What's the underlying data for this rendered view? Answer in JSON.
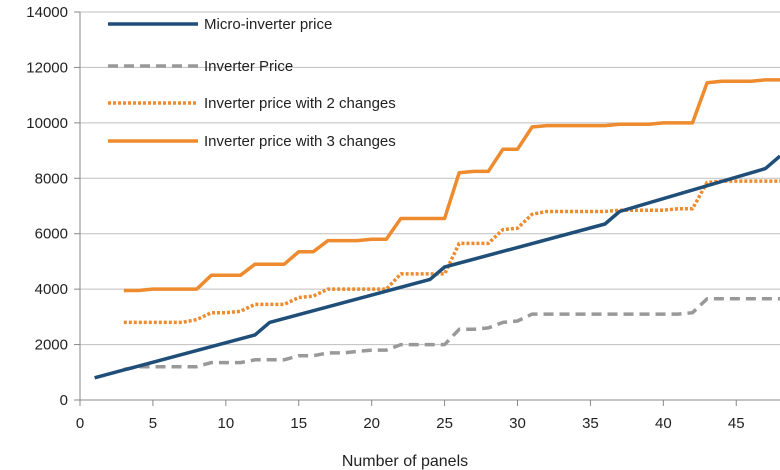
{
  "chart_data": {
    "type": "line",
    "title": "",
    "xlabel": "Number of panels",
    "ylabel": "",
    "xlim": [
      0,
      48
    ],
    "ylim": [
      0,
      14000
    ],
    "xticks": [
      0,
      5,
      10,
      15,
      20,
      25,
      30,
      35,
      40,
      45
    ],
    "yticks": [
      0,
      2000,
      4000,
      6000,
      8000,
      10000,
      12000,
      14000
    ],
    "xtick_labels": [
      "0",
      "5",
      "10",
      "15",
      "20",
      "25",
      "30",
      "35",
      "40",
      "45"
    ],
    "ytick_labels": [
      "0",
      "2000",
      "4000",
      "6000",
      "8000",
      "10000",
      "12000",
      "14000"
    ],
    "grid": "horizontal",
    "legend_position": "top-left",
    "series": [
      {
        "name": "Micro-inverter price",
        "color": "#1f4e79",
        "style": "solid",
        "x": [
          1,
          12,
          13,
          24,
          25,
          36,
          37,
          47,
          48
        ],
        "y": [
          800,
          2350,
          2800,
          4350,
          4800,
          6350,
          6800,
          8350,
          8800
        ]
      },
      {
        "name": "Inverter Price",
        "color": "#999999",
        "style": "dashed",
        "x": [
          3,
          4,
          5,
          6,
          7,
          8,
          9,
          10,
          11,
          12,
          13,
          14,
          15,
          16,
          17,
          18,
          19,
          20,
          21,
          22,
          23,
          24,
          25,
          26,
          27,
          28,
          29,
          30,
          31,
          32,
          33,
          34,
          35,
          36,
          37,
          38,
          39,
          40,
          41,
          42,
          43,
          44,
          45,
          46,
          47,
          48
        ],
        "y": [
          1100,
          1200,
          1200,
          1200,
          1200,
          1200,
          1350,
          1350,
          1350,
          1450,
          1450,
          1450,
          1600,
          1600,
          1700,
          1700,
          1750,
          1800,
          1800,
          2000,
          2000,
          2000,
          2000,
          2550,
          2550,
          2600,
          2800,
          2850,
          3100,
          3100,
          3100,
          3100,
          3100,
          3100,
          3100,
          3100,
          3100,
          3100,
          3100,
          3150,
          3650,
          3650,
          3650,
          3650,
          3650,
          3650
        ]
      },
      {
        "name": "Inverter price with 2 changes",
        "color": "#ed8b2e",
        "style": "dotted",
        "x": [
          3,
          4,
          5,
          6,
          7,
          8,
          9,
          10,
          11,
          12,
          13,
          14,
          15,
          16,
          17,
          18,
          19,
          20,
          21,
          22,
          23,
          24,
          25,
          26,
          27,
          28,
          29,
          30,
          31,
          32,
          33,
          34,
          35,
          36,
          37,
          38,
          39,
          40,
          41,
          42,
          43,
          44,
          45,
          46,
          47,
          48
        ],
        "y": [
          2800,
          2800,
          2800,
          2800,
          2800,
          2900,
          3150,
          3150,
          3200,
          3450,
          3450,
          3450,
          3700,
          3750,
          4000,
          4000,
          4000,
          4000,
          4000,
          4550,
          4550,
          4550,
          4550,
          5650,
          5650,
          5650,
          6150,
          6200,
          6700,
          6800,
          6800,
          6800,
          6800,
          6800,
          6850,
          6850,
          6850,
          6850,
          6900,
          6900,
          7850,
          7900,
          7900,
          7900,
          7900,
          7900
        ]
      },
      {
        "name": "Inverter price with 3 changes",
        "color": "#ed8b2e",
        "style": "solid",
        "x": [
          3,
          4,
          5,
          6,
          7,
          8,
          9,
          10,
          11,
          12,
          13,
          14,
          15,
          16,
          17,
          18,
          19,
          20,
          21,
          22,
          23,
          24,
          25,
          26,
          27,
          28,
          29,
          30,
          31,
          32,
          33,
          34,
          35,
          36,
          37,
          38,
          39,
          40,
          41,
          42,
          43,
          44,
          45,
          46,
          47,
          48
        ],
        "y": [
          3950,
          3950,
          4000,
          4000,
          4000,
          4000,
          4500,
          4500,
          4500,
          4900,
          4900,
          4900,
          5350,
          5350,
          5750,
          5750,
          5750,
          5800,
          5800,
          6550,
          6550,
          6550,
          6550,
          8200,
          8250,
          8250,
          9050,
          9050,
          9850,
          9900,
          9900,
          9900,
          9900,
          9900,
          9950,
          9950,
          9950,
          10000,
          10000,
          10000,
          11450,
          11500,
          11500,
          11500,
          11550,
          11550
        ]
      }
    ]
  }
}
